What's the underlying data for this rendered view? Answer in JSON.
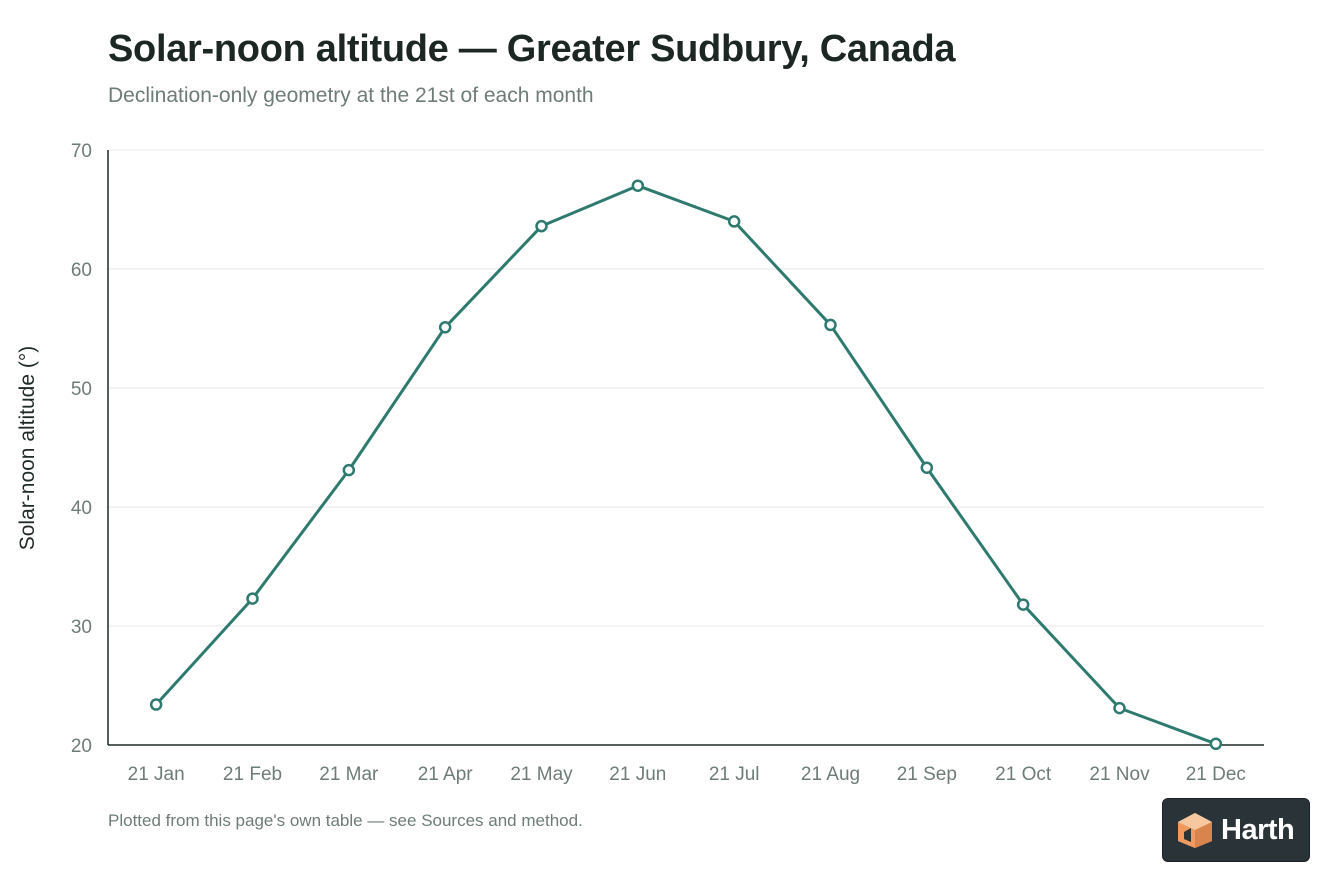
{
  "header": {
    "title": "Solar-noon altitude — Greater Sudbury, Canada",
    "subtitle": "Declination-only geometry at the 21st of each month"
  },
  "footnote": "Plotted from this page's own table — see Sources and method.",
  "logo": {
    "text": "Harth",
    "icon": "house-cube-icon"
  },
  "colors": {
    "line": "#2f7a6f",
    "grid": "#e6e9e8",
    "axis": "#1f2a27",
    "marker_fill": "#ffffff"
  },
  "chart_data": {
    "type": "line",
    "title": "Solar-noon altitude — Greater Sudbury, Canada",
    "subtitle": "Declination-only geometry at the 21st of each month",
    "xlabel": "",
    "ylabel": "Solar-noon altitude (°)",
    "categories": [
      "21 Jan",
      "21 Feb",
      "21 Mar",
      "21 Apr",
      "21 May",
      "21 Jun",
      "21 Jul",
      "21 Aug",
      "21 Sep",
      "21 Oct",
      "21 Nov",
      "21 Dec"
    ],
    "series": [
      {
        "values": [
          23.4,
          32.3,
          43.1,
          55.1,
          63.6,
          67.0,
          64.0,
          55.3,
          43.3,
          31.8,
          23.1,
          20.1
        ]
      }
    ],
    "ylim": [
      20,
      70
    ],
    "yticks": [
      20,
      30,
      40,
      50,
      60,
      70
    ],
    "grid": true,
    "legend": "none",
    "markers": "open-circle"
  }
}
